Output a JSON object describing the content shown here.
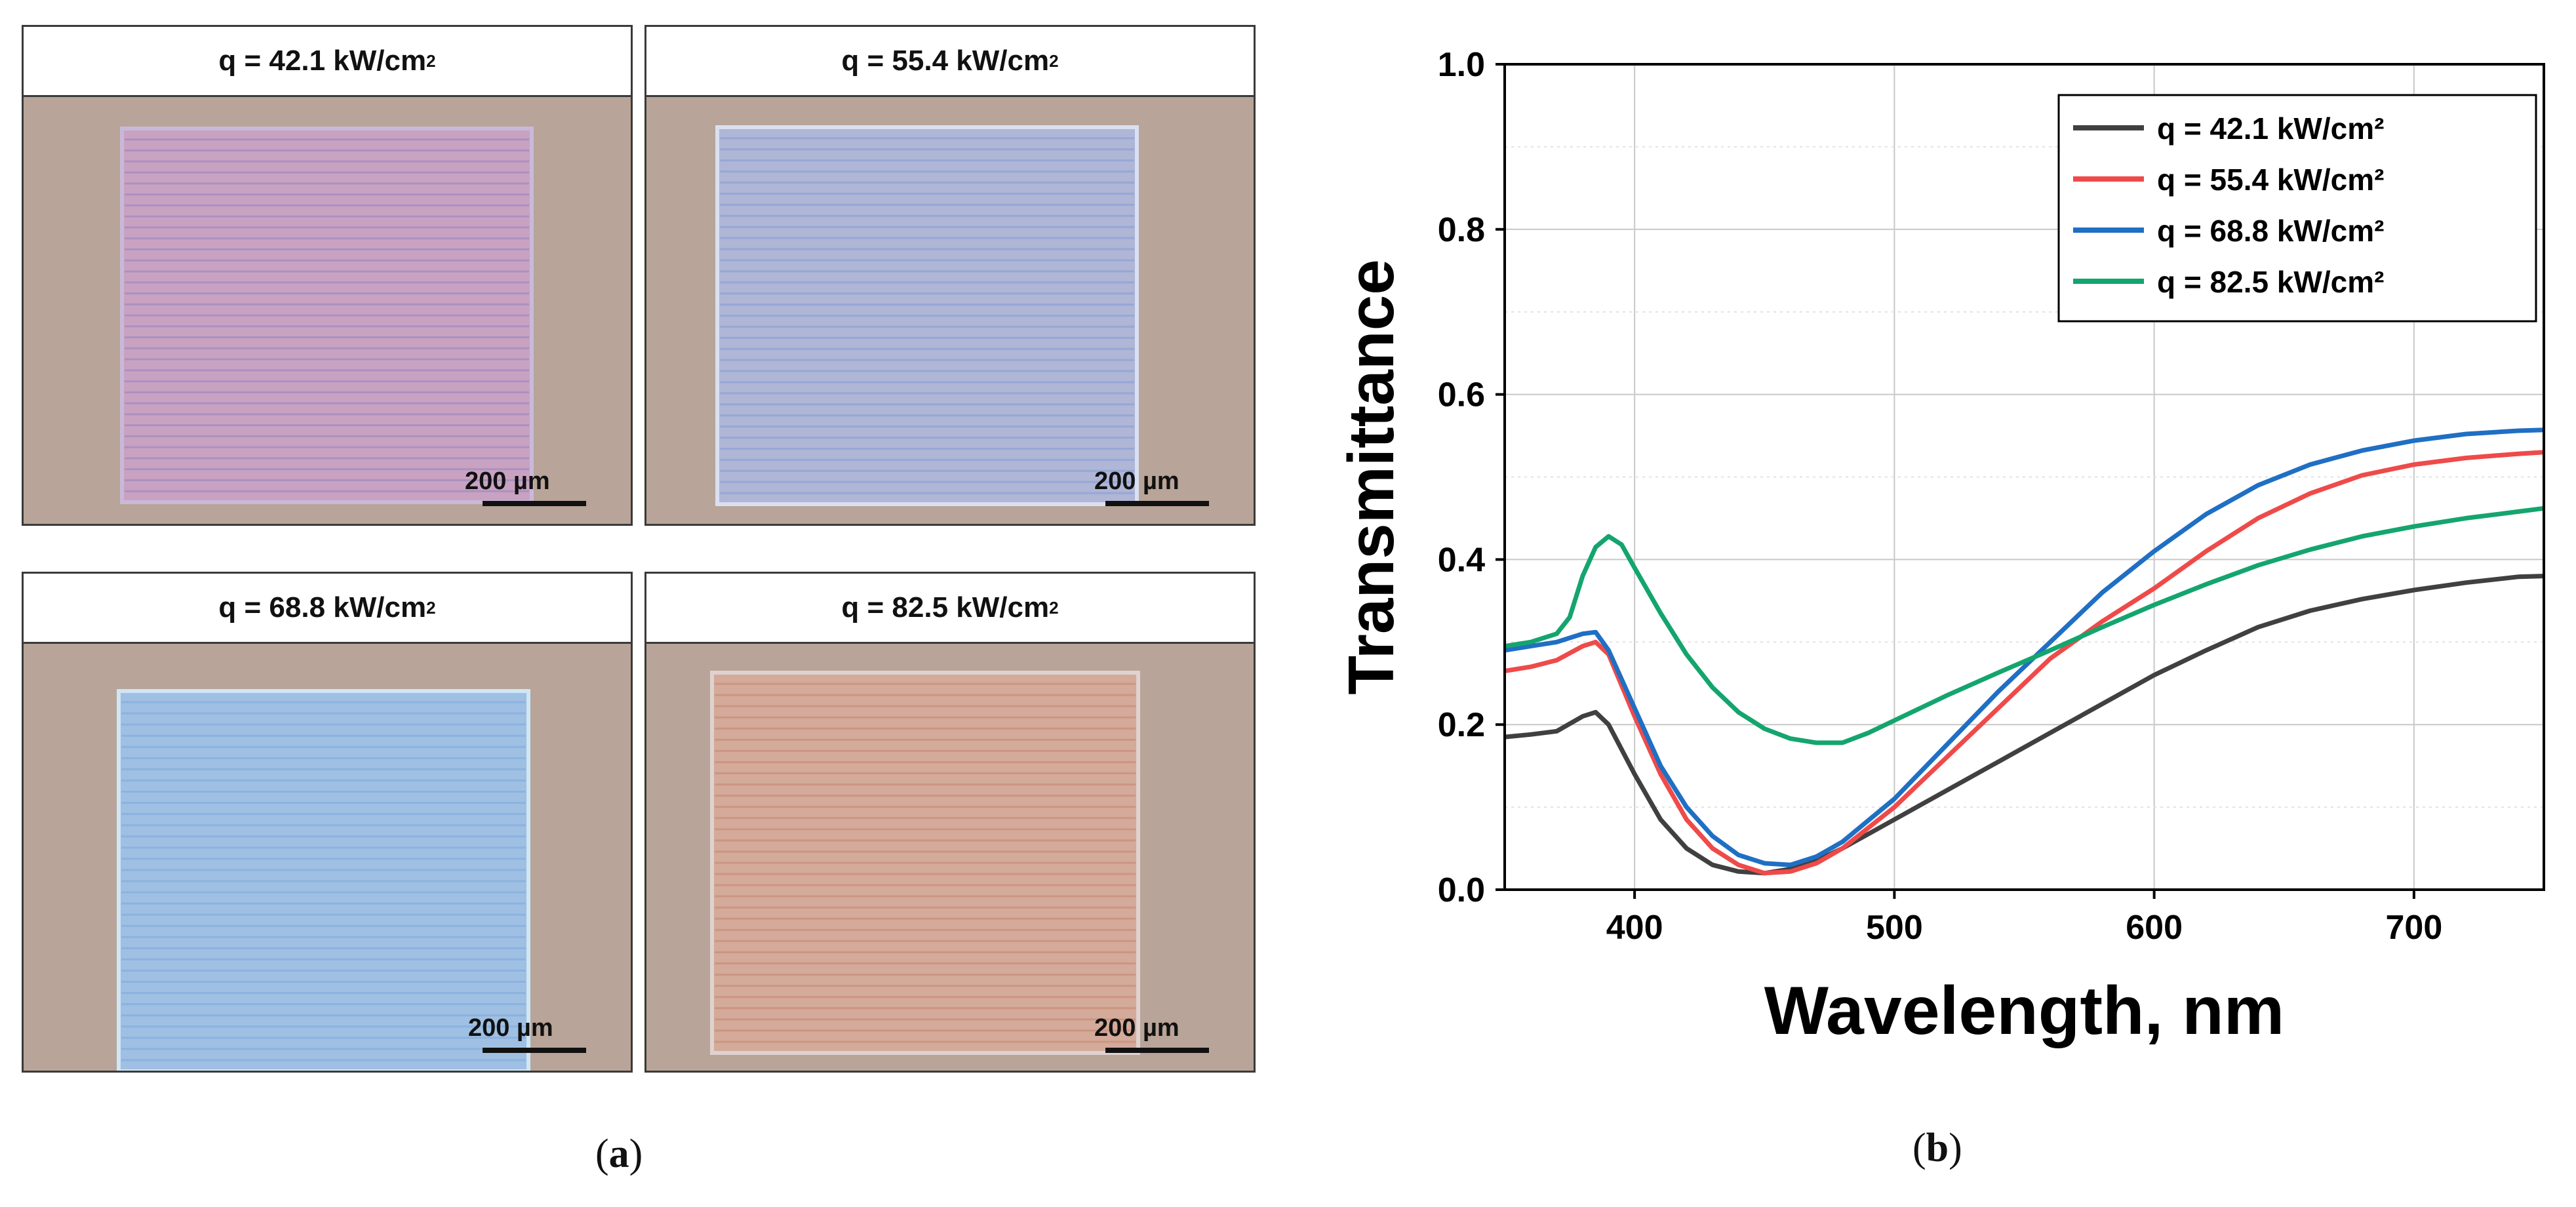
{
  "figure": {
    "label_a": "a",
    "label_b": "b",
    "paren_open": "(",
    "paren_close": ")"
  },
  "panels": [
    {
      "q_prefix": "q = 42.1 kW/cm",
      "q_exp": "2",
      "scale": "200 µm",
      "pattern_color": "#c9a2c2",
      "line_color": "#a08cc0",
      "edge_color": "#c9b9d8"
    },
    {
      "q_prefix": "q = 55.4 kW/cm",
      "q_exp": "2",
      "scale": "200 µm",
      "pattern_color": "#afb6d6",
      "line_color": "#8fa2d8",
      "edge_color": "#d8e0f2"
    },
    {
      "q_prefix": "q = 68.8 kW/cm",
      "q_exp": "2",
      "scale": "200 µm",
      "pattern_color": "#9fc0e2",
      "line_color": "#86aee0",
      "edge_color": "#cfe6f6"
    },
    {
      "q_prefix": "q = 82.5 kW/cm",
      "q_exp": "2",
      "scale": "200 µm",
      "pattern_color": "#d4aa9a",
      "line_color": "#c98f7a",
      "edge_color": "#dfd2cf"
    }
  ],
  "chart_data": {
    "type": "line",
    "title": "",
    "xlabel": "Wavelength, nm",
    "ylabel": "Transmittance",
    "xlim": [
      350,
      750
    ],
    "ylim": [
      0.0,
      1.0
    ],
    "xticks": [
      400,
      500,
      600,
      700
    ],
    "yticks": [
      0.0,
      0.2,
      0.4,
      0.6,
      0.8,
      1.0
    ],
    "xtick_labels": [
      "400",
      "500",
      "600",
      "700"
    ],
    "ytick_labels": [
      "0.0",
      "0.2",
      "0.4",
      "0.6",
      "0.8",
      "1.0"
    ],
    "grid": true,
    "legend_position": "top-right",
    "series": [
      {
        "name": "q = 42.1 kW/cm²",
        "color": "#404040",
        "x": [
          350,
          360,
          370,
          380,
          385,
          390,
          400,
          410,
          420,
          430,
          440,
          450,
          460,
          470,
          480,
          500,
          520,
          540,
          560,
          580,
          600,
          620,
          640,
          660,
          680,
          700,
          720,
          740,
          750
        ],
        "y": [
          0.185,
          0.188,
          0.192,
          0.21,
          0.215,
          0.2,
          0.14,
          0.085,
          0.05,
          0.03,
          0.022,
          0.02,
          0.025,
          0.035,
          0.05,
          0.085,
          0.12,
          0.155,
          0.19,
          0.225,
          0.26,
          0.29,
          0.318,
          0.338,
          0.352,
          0.363,
          0.372,
          0.379,
          0.38
        ]
      },
      {
        "name": "q = 55.4 kW/cm²",
        "color": "#ef4a4a",
        "x": [
          350,
          360,
          370,
          380,
          385,
          390,
          400,
          410,
          420,
          430,
          440,
          450,
          460,
          470,
          480,
          500,
          520,
          540,
          560,
          580,
          600,
          620,
          640,
          660,
          680,
          700,
          720,
          740,
          750
        ],
        "y": [
          0.265,
          0.27,
          0.278,
          0.295,
          0.3,
          0.285,
          0.21,
          0.14,
          0.085,
          0.05,
          0.03,
          0.02,
          0.022,
          0.032,
          0.05,
          0.1,
          0.16,
          0.22,
          0.28,
          0.325,
          0.365,
          0.41,
          0.45,
          0.48,
          0.502,
          0.515,
          0.523,
          0.528,
          0.53
        ]
      },
      {
        "name": "q = 68.8 kW/cm²",
        "color": "#1f6fc4",
        "x": [
          350,
          360,
          370,
          380,
          385,
          390,
          400,
          410,
          420,
          430,
          440,
          450,
          460,
          470,
          480,
          500,
          520,
          540,
          560,
          580,
          600,
          620,
          640,
          660,
          680,
          700,
          720,
          740,
          750
        ],
        "y": [
          0.29,
          0.295,
          0.3,
          0.31,
          0.312,
          0.29,
          0.22,
          0.15,
          0.1,
          0.065,
          0.042,
          0.032,
          0.03,
          0.04,
          0.058,
          0.11,
          0.175,
          0.24,
          0.3,
          0.36,
          0.41,
          0.455,
          0.49,
          0.515,
          0.532,
          0.544,
          0.552,
          0.556,
          0.557
        ]
      },
      {
        "name": "q = 82.5 kW/cm²",
        "color": "#14a56e",
        "x": [
          350,
          360,
          370,
          375,
          380,
          385,
          390,
          395,
          400,
          410,
          420,
          430,
          440,
          450,
          460,
          470,
          480,
          490,
          500,
          520,
          540,
          560,
          580,
          600,
          620,
          640,
          660,
          680,
          700,
          720,
          740,
          750
        ],
        "y": [
          0.295,
          0.3,
          0.31,
          0.33,
          0.38,
          0.415,
          0.428,
          0.418,
          0.39,
          0.335,
          0.285,
          0.245,
          0.215,
          0.195,
          0.183,
          0.178,
          0.178,
          0.19,
          0.205,
          0.235,
          0.263,
          0.29,
          0.318,
          0.345,
          0.37,
          0.393,
          0.412,
          0.428,
          0.44,
          0.45,
          0.458,
          0.462
        ]
      }
    ]
  }
}
